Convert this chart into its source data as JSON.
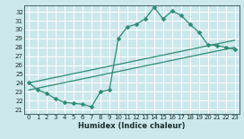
{
  "xlabel": "Humidex (Indice chaleur)",
  "bg_color": "#cce8ec",
  "grid_color": "#ffffff",
  "line_color": "#2e8b74",
  "xlim": [
    -0.5,
    23.5
  ],
  "ylim": [
    20.5,
    32.7
  ],
  "yticks": [
    21,
    22,
    23,
    24,
    25,
    26,
    27,
    28,
    29,
    30,
    31,
    32
  ],
  "xticks": [
    0,
    1,
    2,
    3,
    4,
    5,
    6,
    7,
    8,
    9,
    10,
    11,
    12,
    13,
    14,
    15,
    16,
    17,
    18,
    19,
    20,
    21,
    22,
    23
  ],
  "line1_x": [
    0,
    1,
    2,
    3,
    4,
    5,
    6,
    7,
    8,
    9,
    10,
    11,
    12,
    13,
    14,
    15,
    16,
    17,
    18,
    19,
    20,
    21,
    22,
    23
  ],
  "line1_y": [
    24.0,
    23.2,
    22.8,
    22.2,
    21.8,
    21.7,
    21.6,
    21.3,
    23.0,
    23.2,
    29.0,
    30.3,
    30.6,
    31.2,
    32.5,
    31.2,
    32.1,
    31.6,
    30.6,
    29.7,
    28.3,
    28.2,
    28.0,
    27.8
  ],
  "line2_x": [
    0,
    23
  ],
  "line2_y": [
    23.2,
    28.0
  ],
  "line3_x": [
    0,
    23
  ],
  "line3_y": [
    24.0,
    28.8
  ],
  "marker": "D",
  "markersize": 2.5,
  "linewidth": 0.9,
  "tick_fontsize": 5,
  "xlabel_fontsize": 6
}
